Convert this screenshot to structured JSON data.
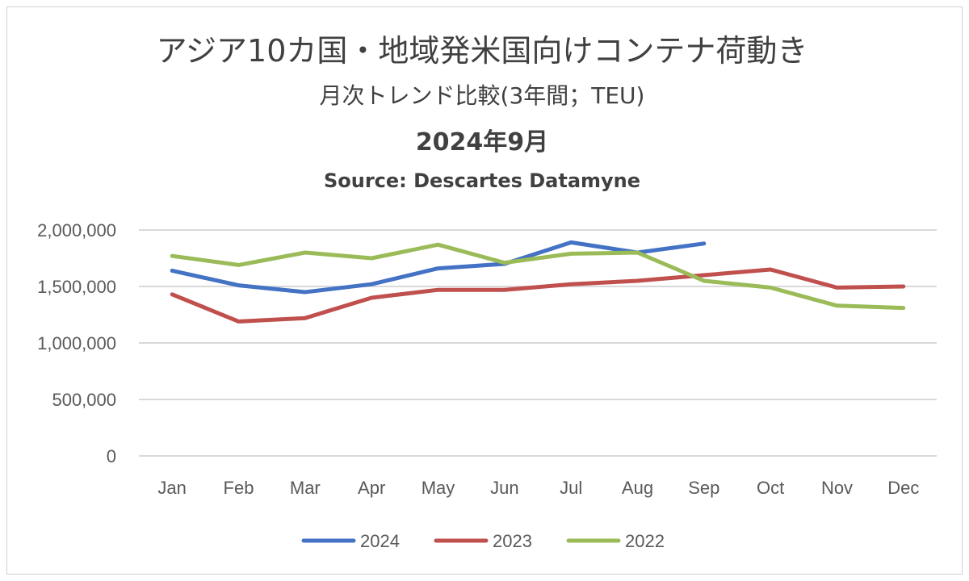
{
  "chart_data": {
    "type": "line",
    "title": "アジア10カ国・地域発米国向けコンテナ荷動き",
    "subtitle": "月次トレンド比較(3年間；TEU)",
    "date_label": "2024年9月",
    "source": "Source: Descartes Datamyne",
    "categories": [
      "Jan",
      "Feb",
      "Mar",
      "Apr",
      "May",
      "Jun",
      "Jul",
      "Aug",
      "Sep",
      "Oct",
      "Nov",
      "Dec"
    ],
    "y_tick_labels": [
      "2,000,000",
      "1,500,000",
      "1,000,000",
      "500,000",
      "0"
    ],
    "y_ticks": [
      2000000,
      1500000,
      1000000,
      500000,
      0
    ],
    "ylim": [
      0,
      2000000
    ],
    "grid": true,
    "legend_position": "bottom",
    "series": [
      {
        "name": "2024",
        "color": "#4472c4",
        "values": [
          1640000,
          1510000,
          1450000,
          1520000,
          1660000,
          1700000,
          1890000,
          1800000,
          1880000,
          null,
          null,
          null
        ]
      },
      {
        "name": "2023",
        "color": "#c0504d",
        "values": [
          1430000,
          1190000,
          1220000,
          1400000,
          1470000,
          1470000,
          1520000,
          1550000,
          1600000,
          1650000,
          1490000,
          1500000
        ]
      },
      {
        "name": "2022",
        "color": "#9bbb59",
        "values": [
          1770000,
          1690000,
          1800000,
          1750000,
          1870000,
          1710000,
          1790000,
          1800000,
          1550000,
          1490000,
          1330000,
          1310000
        ]
      }
    ]
  }
}
